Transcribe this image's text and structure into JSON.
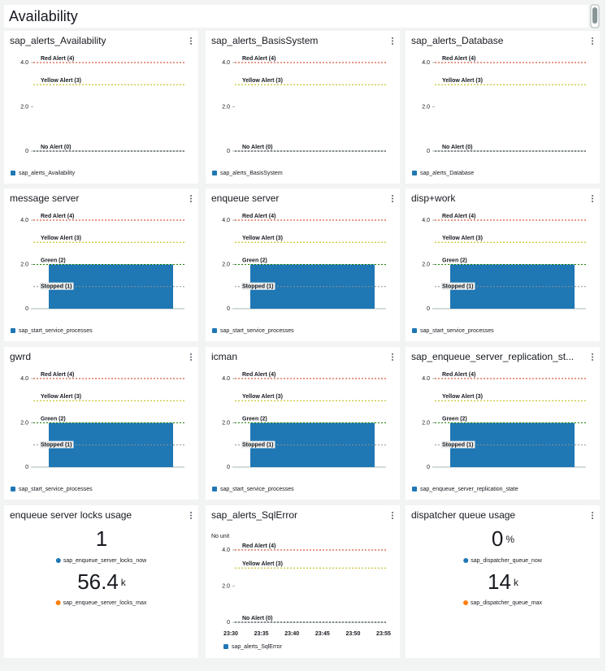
{
  "header": {
    "title": "Availability"
  },
  "chart_data": [
    {
      "type": "line",
      "title": "sap_alerts_Availability",
      "ylim": [
        0,
        4
      ],
      "yticks": [
        0,
        {
          "value": 2,
          "label": "2.0"
        },
        {
          "value": 4,
          "label": "4.0"
        }
      ],
      "annotations": [
        {
          "value": 4,
          "label": "Red Alert (4)",
          "color": "#d13212"
        },
        {
          "value": 3,
          "label": "Yellow Alert (3)",
          "color": "#b8b800"
        },
        {
          "value": 0,
          "label": "No Alert (0)",
          "color": "#16191f"
        }
      ],
      "series": [
        {
          "name": "sap_alerts_Availability",
          "color": "#1f77b4"
        }
      ]
    },
    {
      "type": "line",
      "title": "sap_alerts_BasisSystem",
      "ylim": [
        0,
        4
      ],
      "yticks": [
        0,
        {
          "value": 2,
          "label": "2.0"
        },
        {
          "value": 4,
          "label": "4.0"
        }
      ],
      "annotations": [
        {
          "value": 4,
          "label": "Red Alert (4)",
          "color": "#d13212"
        },
        {
          "value": 3,
          "label": "Yellow Alert (3)",
          "color": "#b8b800"
        },
        {
          "value": 0,
          "label": "No Alert (0)",
          "color": "#16191f"
        }
      ],
      "series": [
        {
          "name": "sap_alerts_BasisSystem",
          "color": "#1f77b4"
        }
      ]
    },
    {
      "type": "line",
      "title": "sap_alerts_Database",
      "ylim": [
        0,
        4
      ],
      "yticks": [
        0,
        {
          "value": 2,
          "label": "2.0"
        },
        {
          "value": 4,
          "label": "4.0"
        }
      ],
      "annotations": [
        {
          "value": 4,
          "label": "Red Alert (4)",
          "color": "#d13212"
        },
        {
          "value": 3,
          "label": "Yellow Alert (3)",
          "color": "#b8b800"
        },
        {
          "value": 0,
          "label": "No Alert (0)",
          "color": "#16191f"
        }
      ],
      "series": [
        {
          "name": "sap_alerts_Database",
          "color": "#1f77b4"
        }
      ]
    },
    {
      "type": "bar",
      "title": "message server",
      "ylim": [
        0,
        4
      ],
      "yticks": [
        0,
        {
          "value": 2,
          "label": "2.0"
        },
        {
          "value": 4,
          "label": "4.0"
        }
      ],
      "annotations": [
        {
          "value": 4,
          "label": "Red Alert (4)",
          "color": "#d13212"
        },
        {
          "value": 3,
          "label": "Yellow Alert (3)",
          "color": "#b8b800"
        },
        {
          "value": 2,
          "label": "Green (2)",
          "color": "#1d8102"
        },
        {
          "value": 1,
          "label": "Stopped (1)",
          "color": "#879596"
        }
      ],
      "series": [
        {
          "name": "sap_start_service_processes",
          "color": "#1f77b4",
          "values": [
            2
          ]
        }
      ]
    },
    {
      "type": "bar",
      "title": "enqueue server",
      "ylim": [
        0,
        4
      ],
      "yticks": [
        0,
        {
          "value": 2,
          "label": "2.0"
        },
        {
          "value": 4,
          "label": "4.0"
        }
      ],
      "annotations": [
        {
          "value": 4,
          "label": "Red Alert (4)",
          "color": "#d13212"
        },
        {
          "value": 3,
          "label": "Yellow Alert (3)",
          "color": "#b8b800"
        },
        {
          "value": 2,
          "label": "Green (2)",
          "color": "#1d8102"
        },
        {
          "value": 1,
          "label": "Stopped (1)",
          "color": "#879596"
        }
      ],
      "series": [
        {
          "name": "sap_start_service_processes",
          "color": "#1f77b4",
          "values": [
            2
          ]
        }
      ]
    },
    {
      "type": "bar",
      "title": "disp+work",
      "ylim": [
        0,
        4
      ],
      "yticks": [
        0,
        {
          "value": 2,
          "label": "2.0"
        },
        {
          "value": 4,
          "label": "4.0"
        }
      ],
      "annotations": [
        {
          "value": 4,
          "label": "Red Alert (4)",
          "color": "#d13212"
        },
        {
          "value": 3,
          "label": "Yellow Alert (3)",
          "color": "#b8b800"
        },
        {
          "value": 2,
          "label": "Green (2)",
          "color": "#1d8102"
        },
        {
          "value": 1,
          "label": "Stopped (1)",
          "color": "#879596"
        }
      ],
      "series": [
        {
          "name": "sap_start_service_processes",
          "color": "#1f77b4",
          "values": [
            2
          ]
        }
      ]
    },
    {
      "type": "bar",
      "title": "gwrd",
      "ylim": [
        0,
        4
      ],
      "yticks": [
        0,
        {
          "value": 2,
          "label": "2.0"
        },
        {
          "value": 4,
          "label": "4.0"
        }
      ],
      "annotations": [
        {
          "value": 4,
          "label": "Red Alert (4)",
          "color": "#d13212"
        },
        {
          "value": 3,
          "label": "Yellow Alert (3)",
          "color": "#b8b800"
        },
        {
          "value": 2,
          "label": "Green (2)",
          "color": "#1d8102"
        },
        {
          "value": 1,
          "label": "Stopped (1)",
          "color": "#879596"
        }
      ],
      "series": [
        {
          "name": "sap_start_service_processes",
          "color": "#1f77b4",
          "values": [
            2
          ]
        }
      ]
    },
    {
      "type": "bar",
      "title": "icman",
      "ylim": [
        0,
        4
      ],
      "yticks": [
        0,
        {
          "value": 2,
          "label": "2.0"
        },
        {
          "value": 4,
          "label": "4.0"
        }
      ],
      "annotations": [
        {
          "value": 4,
          "label": "Red Alert (4)",
          "color": "#d13212"
        },
        {
          "value": 3,
          "label": "Yellow Alert (3)",
          "color": "#b8b800"
        },
        {
          "value": 2,
          "label": "Green (2)",
          "color": "#1d8102"
        },
        {
          "value": 1,
          "label": "Stopped (1)",
          "color": "#879596"
        }
      ],
      "series": [
        {
          "name": "sap_start_service_processes",
          "color": "#1f77b4",
          "values": [
            2
          ]
        }
      ]
    },
    {
      "type": "bar",
      "title": "sap_enqueue_server_replication_st...",
      "ylim": [
        0,
        4
      ],
      "yticks": [
        0,
        {
          "value": 2,
          "label": "2.0"
        },
        {
          "value": 4,
          "label": "4.0"
        }
      ],
      "annotations": [
        {
          "value": 4,
          "label": "Red Alert (4)",
          "color": "#d13212"
        },
        {
          "value": 3,
          "label": "Yellow Alert (3)",
          "color": "#b8b800"
        },
        {
          "value": 2,
          "label": "Green (2)",
          "color": "#1d8102"
        },
        {
          "value": 1,
          "label": "Stopped (1)",
          "color": "#879596"
        }
      ],
      "series": [
        {
          "name": "sap_enqueue_server_replication_state",
          "color": "#1f77b4",
          "values": [
            2
          ]
        }
      ]
    },
    {
      "type": "number",
      "title": "enqueue server locks usage",
      "metrics": [
        {
          "name": "sap_enqueue_server_locks_now",
          "color": "#1f77b4",
          "value": 1
        },
        {
          "name": "sap_enqueue_server_locks_max",
          "color": "#ff7f0e",
          "value": 56.4,
          "unit": "k"
        }
      ]
    },
    {
      "type": "line",
      "title": "sap_alerts_SqlError",
      "unit_note": "No unit",
      "ylim": [
        0,
        4
      ],
      "yticks": [
        0,
        {
          "value": 2,
          "label": "2.0"
        },
        {
          "value": 4,
          "label": "4.0"
        }
      ],
      "xticks": [
        "23:30",
        "23:35",
        "23:40",
        "23:45",
        "23:50",
        "23:55"
      ],
      "annotations": [
        {
          "value": 4,
          "label": "Red Alert (4)",
          "color": "#d13212"
        },
        {
          "value": 3,
          "label": "Yellow Alert (3)",
          "color": "#b8b800"
        },
        {
          "value": 0,
          "label": "No Alert (0)",
          "color": "#16191f"
        }
      ],
      "series": [
        {
          "name": "sap_alerts_SqlError",
          "color": "#1f77b4"
        }
      ]
    },
    {
      "type": "number",
      "title": "dispatcher queue usage",
      "metrics": [
        {
          "name": "sap_dispatcher_queue_now",
          "color": "#1f77b4",
          "value": 0,
          "unit": "%"
        },
        {
          "name": "sap_dispatcher_queue_max",
          "color": "#ff7f0e",
          "value": 14,
          "unit": "k"
        }
      ]
    }
  ]
}
